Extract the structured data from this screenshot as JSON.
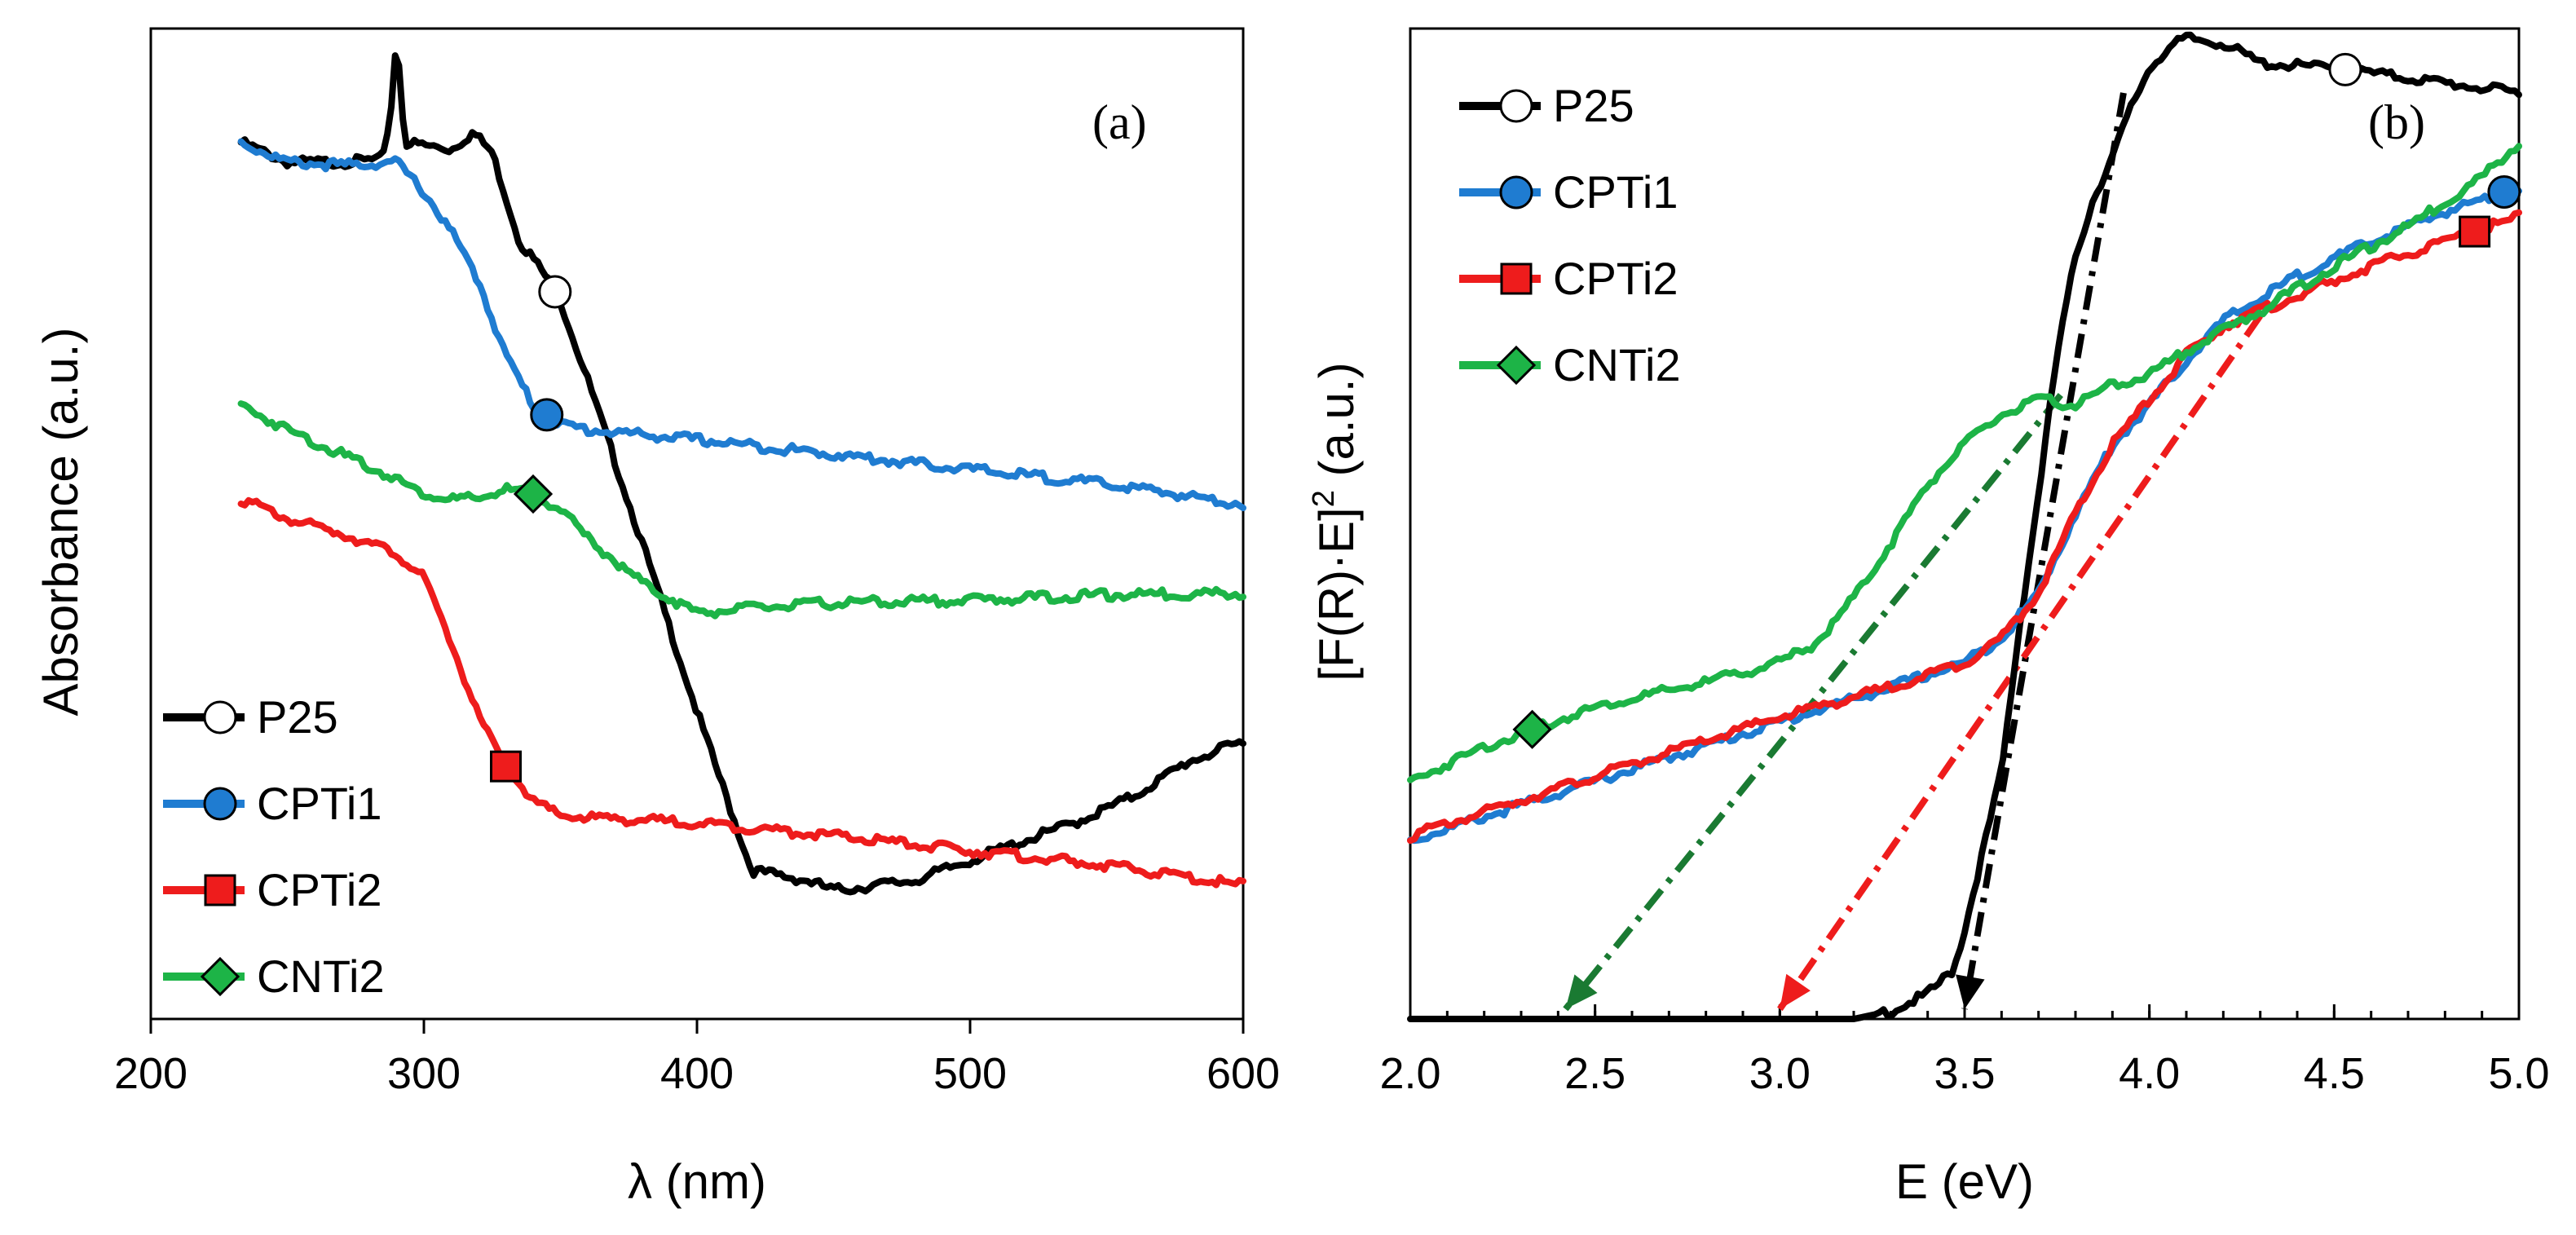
{
  "chart_data": [
    {
      "type": "line",
      "panel_label": "(a)",
      "xlabel": "λ (nm)",
      "ylabel": "Absorbance (a.u.)",
      "xlim": [
        200,
        600
      ],
      "ylim": [
        0,
        100
      ],
      "xticks": [
        200,
        300,
        400,
        500,
        600
      ],
      "legend_position": "bottom-left",
      "series": [
        {
          "name": "P25",
          "color": "#000000",
          "marker": "circle-open",
          "marker_x": 348,
          "x": [
            233,
            250,
            270,
            285,
            288,
            290,
            293,
            300,
            310,
            318,
            325,
            330,
            335,
            340,
            345,
            350,
            360,
            380,
            400,
            420,
            440,
            450,
            460,
            480,
            500,
            520,
            540,
            560,
            580,
            600
          ],
          "y": [
            88.5,
            86.5,
            86.5,
            86.8,
            92,
            99.5,
            88.5,
            88.2,
            87.8,
            89.5,
            87.5,
            83,
            78.5,
            76.8,
            74.8,
            72.5,
            64.5,
            48,
            31,
            15,
            14,
            13,
            13.3,
            14,
            16,
            18,
            20,
            22.5,
            26,
            28
          ]
        },
        {
          "name": "CPTi1",
          "color": "#1f7cd1",
          "marker": "circle",
          "marker_x": 345,
          "x": [
            233,
            250,
            270,
            290,
            300,
            310,
            320,
            330,
            340,
            350,
            360,
            400,
            450,
            500,
            550,
            600
          ],
          "y": [
            88.5,
            86.5,
            86.2,
            86.5,
            83.5,
            79.5,
            74.5,
            67,
            62,
            60,
            59.5,
            58.5,
            57,
            55.5,
            54,
            52
          ]
        },
        {
          "name": "CPTi2",
          "color": "#ee1c1c",
          "marker": "square",
          "marker_x": 330,
          "x": [
            233,
            250,
            270,
            290,
            300,
            310,
            320,
            330,
            340,
            350,
            400,
            450,
            500,
            550,
            600
          ],
          "y": [
            52.5,
            50.5,
            49,
            47,
            44.5,
            38,
            30.5,
            25.5,
            22,
            20.5,
            19.8,
            18.5,
            17,
            15.5,
            13.5
          ]
        },
        {
          "name": "CNTi2",
          "color": "#1db447",
          "marker": "diamond",
          "marker_x": 340,
          "x": [
            233,
            250,
            270,
            290,
            300,
            310,
            320,
            330,
            340,
            350,
            360,
            380,
            400,
            420,
            450,
            500,
            550,
            600
          ],
          "y": [
            62,
            59.5,
            57,
            54.5,
            53,
            52.5,
            52.5,
            53.5,
            53,
            51.5,
            48.5,
            44,
            41,
            41.5,
            42,
            42.3,
            42.8,
            43
          ]
        }
      ]
    },
    {
      "type": "line",
      "panel_label": "(b)",
      "xlabel": "E (eV)",
      "ylabel": "[F(R)·E]",
      "ylabel_superscript": "2",
      "ylabel_suffix": " (a.u.)",
      "xlim": [
        2.0,
        5.0
      ],
      "ylim": [
        0,
        100
      ],
      "xticks": [
        "2.0",
        "2.5",
        "3.0",
        "3.5",
        "4.0",
        "4.5",
        "5.0"
      ],
      "legend_position": "top-left",
      "series": [
        {
          "name": "P25",
          "color": "#000000",
          "marker": "circle-open",
          "marker_x": 4.53,
          "x": [
            2.0,
            3.2,
            3.3,
            3.4,
            3.47,
            3.5,
            3.55,
            3.6,
            3.65,
            3.7,
            3.75,
            3.8,
            3.85,
            3.9,
            3.95,
            4.0,
            4.05,
            4.1,
            4.2,
            4.3,
            4.5,
            4.7,
            4.9,
            5.0
          ],
          "y": [
            0,
            0,
            0.8,
            2.5,
            5,
            9,
            17,
            25,
            40,
            53,
            67,
            77,
            83,
            87,
            92,
            96,
            98,
            99,
            98.5,
            96.5,
            96,
            95,
            94,
            93.5
          ]
        },
        {
          "name": "CPTi1",
          "color": "#1f7cd1",
          "marker": "circle",
          "marker_x": 4.96,
          "x": [
            2.0,
            2.5,
            3.0,
            3.3,
            3.5,
            3.6,
            3.7,
            3.8,
            3.9,
            4.0,
            4.1,
            4.2,
            4.4,
            4.6,
            4.8,
            5.0
          ],
          "y": [
            18,
            24,
            30,
            33.5,
            36,
            38.5,
            43,
            51,
            58,
            62,
            66.5,
            70.5,
            75,
            78.5,
            81.5,
            84
          ]
        },
        {
          "name": "CPTi2",
          "color": "#ee1c1c",
          "marker": "square",
          "marker_x": 4.88,
          "x": [
            2.0,
            2.5,
            3.0,
            3.3,
            3.5,
            3.6,
            3.7,
            3.8,
            3.9,
            4.0,
            4.1,
            4.2,
            4.4,
            4.6,
            4.8,
            5.0
          ],
          "y": [
            18.5,
            24.5,
            30.5,
            33.5,
            36,
            38.5,
            43,
            51,
            58,
            62.5,
            67,
            70,
            73,
            76,
            78.5,
            81
          ]
        },
        {
          "name": "CNTi2",
          "color": "#1db447",
          "marker": "diamond",
          "marker_x": 2.33,
          "x": [
            2.0,
            2.2,
            2.5,
            2.8,
            3.0,
            3.1,
            3.2,
            3.3,
            3.4,
            3.5,
            3.6,
            3.7,
            3.8,
            3.9,
            4.0,
            4.1,
            4.3,
            4.5,
            4.7,
            4.9,
            5.0
          ],
          "y": [
            24,
            27.5,
            31.5,
            34,
            36,
            38,
            42.5,
            48,
            54,
            58,
            61,
            62.5,
            62,
            64,
            65,
            67.5,
            71.5,
            76,
            80,
            85,
            88.5
          ]
        }
      ],
      "fits": [
        {
          "color": "#000000",
          "x": [
            3.93,
            3.5
          ],
          "y": [
            93.5,
            1
          ]
        },
        {
          "color": "#ee1c1c",
          "x": [
            4.3,
            3.0
          ],
          "y": [
            71,
            1
          ]
        },
        {
          "color": "#1a7a32",
          "x": [
            3.76,
            2.42
          ],
          "y": [
            63,
            1
          ]
        }
      ]
    }
  ]
}
